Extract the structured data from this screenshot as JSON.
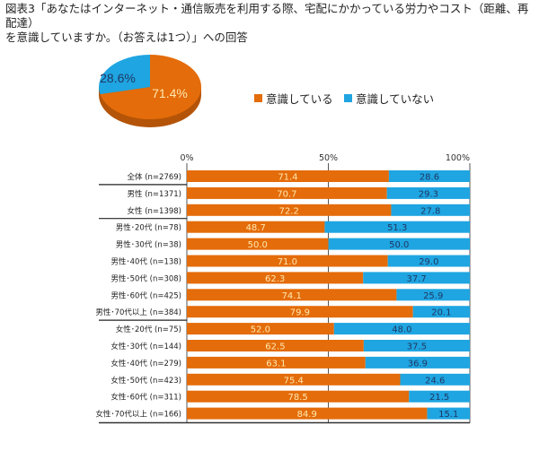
{
  "title_line1": "図表3「あなたはインターネット・通信販売を利用する際、宅配にかかっている労力やコスト（距離、再配達）",
  "title_line2": "を意識していますか。（お答えは1つ）」への回答",
  "colors": {
    "aware": "#E46C0A",
    "unaware": "#1FA5E1",
    "aware_text": "#FFE8B0",
    "unaware_text": "#1F3864"
  },
  "legend": [
    {
      "label": "意識している",
      "color": "#E46C0A"
    },
    {
      "label": "意識していない",
      "color": "#1FA5E1"
    }
  ],
  "chart_data": [
    {
      "type": "pie",
      "slices": [
        {
          "label": "意識している",
          "value": 71.4,
          "display": "71.4%"
        },
        {
          "label": "意識していない",
          "value": 28.6,
          "display": "28.6%"
        }
      ],
      "style": "3d"
    },
    {
      "type": "bar",
      "orientation": "horizontal-stacked-100",
      "xlim": [
        0,
        100
      ],
      "ticks": [
        "0%",
        "50%",
        "100%"
      ],
      "categories": [
        "全体 (n=2769)",
        "男性 (n=1371)",
        "女性 (n=1398)",
        "男性･20代 (n=78)",
        "男性･30代 (n=38)",
        "男性･40代 (n=138)",
        "男性･50代 (n=308)",
        "男性･60代 (n=425)",
        "男性･70代以上 (n=384)",
        "女性･20代 (n=75)",
        "女性･30代 (n=144)",
        "女性･40代 (n=279)",
        "女性･50代 (n=423)",
        "女性･60代 (n=311)",
        "女性･70代以上 (n=166)"
      ],
      "series": [
        {
          "name": "意識している",
          "values": [
            "71.4",
            "70.7",
            "72.2",
            "48.7",
            "50.0",
            "71.0",
            "62.3",
            "74.1",
            "79.9",
            "52.0",
            "62.5",
            "63.1",
            "75.4",
            "78.5",
            "84.9"
          ]
        },
        {
          "name": "意識していない",
          "values": [
            "28.6",
            "29.3",
            "27.8",
            "51.3",
            "50.0",
            "29.0",
            "37.7",
            "25.9",
            "20.1",
            "48.0",
            "37.5",
            "36.9",
            "24.6",
            "21.5",
            "15.1"
          ]
        }
      ],
      "group_separators_after": [
        0,
        2,
        8
      ]
    }
  ]
}
